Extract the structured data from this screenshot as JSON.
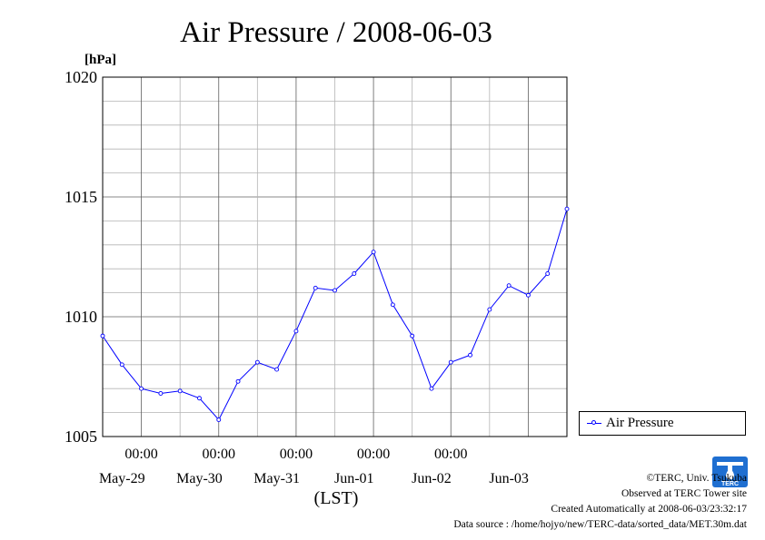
{
  "chart_data": {
    "type": "line",
    "title": "Air Pressure / 2008-06-03",
    "ylabel": "[hPa]",
    "xlabel": "(LST)",
    "ylim": [
      1005,
      1020
    ],
    "yticks": [
      "1005",
      "1010",
      "1015",
      "1020"
    ],
    "xlim_days": [
      0,
      6
    ],
    "time_tick_label": "00:00",
    "date_labels": [
      "May-29",
      "May-30",
      "May-31",
      "Jun-01",
      "Jun-02",
      "Jun-03"
    ],
    "grid": true,
    "legend_position": "right",
    "series": [
      {
        "name": "Air Pressure",
        "color": "#0000ff",
        "marker": "open-circle",
        "x": [
          0.0,
          0.25,
          0.5,
          0.75,
          1.0,
          1.25,
          1.5,
          1.75,
          2.0,
          2.25,
          2.5,
          2.75,
          3.0,
          3.25,
          3.5,
          3.75,
          4.0,
          4.25,
          4.5,
          4.75,
          5.0,
          5.25,
          5.5,
          5.75,
          6.0
        ],
        "values": [
          1009.2,
          1008.0,
          1007.0,
          1006.8,
          1006.9,
          1006.6,
          1005.7,
          1007.3,
          1008.1,
          1007.8,
          1009.4,
          1011.2,
          1011.1,
          1011.8,
          1012.7,
          1010.5,
          1009.2,
          1007.0,
          1008.1,
          1008.4,
          1010.3,
          1011.3,
          1010.9,
          1011.8,
          1014.5
        ]
      }
    ]
  },
  "legend": {
    "label": "Air Pressure"
  },
  "footer": {
    "copyright": "©TERC, Univ. Tsukuba",
    "observed": "Observed at TERC Tower site",
    "created": "Created Automatically at 2008-06-03/23:32:17",
    "source": "Data source : /home/hojyo/new/TERC-data/sorted_data/MET.30m.dat"
  },
  "logo": {
    "text": "TERC",
    "color": "#1f6fd1"
  }
}
